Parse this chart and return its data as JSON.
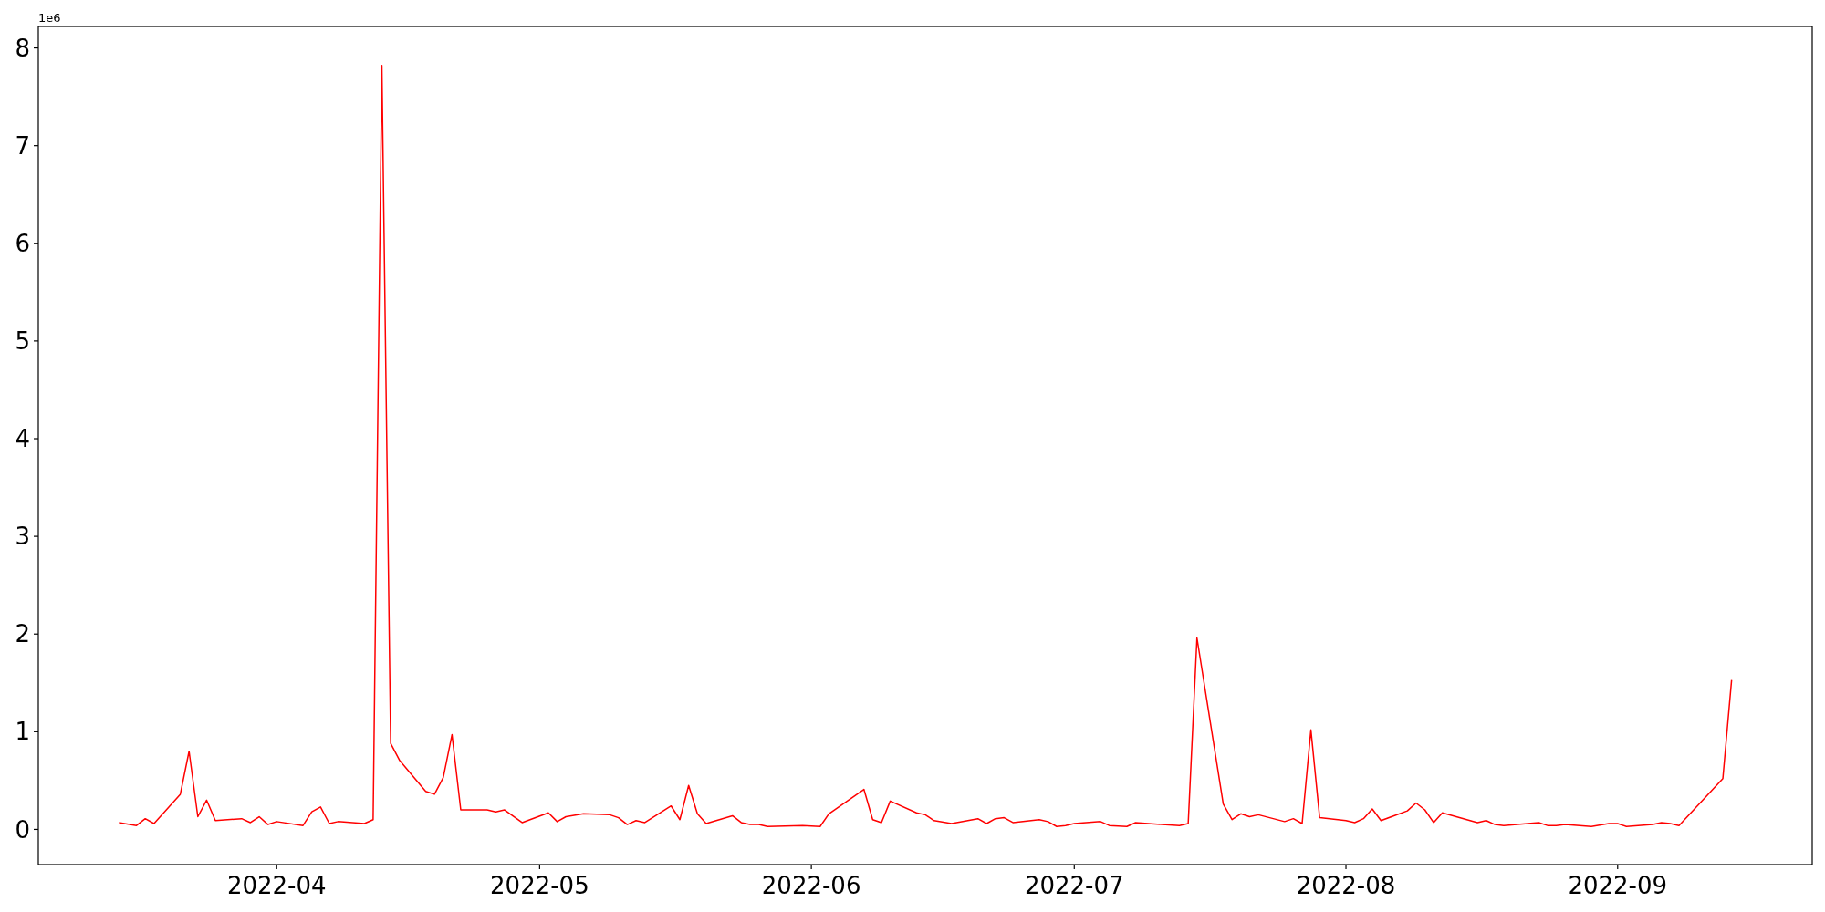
{
  "chart_data": {
    "type": "line",
    "x": [
      "2022-03-14",
      "2022-03-16",
      "2022-03-17",
      "2022-03-18",
      "2022-03-21",
      "2022-03-22",
      "2022-03-23",
      "2022-03-24",
      "2022-03-25",
      "2022-03-28",
      "2022-03-29",
      "2022-03-30",
      "2022-03-31",
      "2022-04-01",
      "2022-04-04",
      "2022-04-05",
      "2022-04-06",
      "2022-04-07",
      "2022-04-08",
      "2022-04-11",
      "2022-04-12",
      "2022-04-13",
      "2022-04-14",
      "2022-04-15",
      "2022-04-18",
      "2022-04-19",
      "2022-04-20",
      "2022-04-21",
      "2022-04-22",
      "2022-04-25",
      "2022-04-26",
      "2022-04-27",
      "2022-04-29",
      "2022-05-02",
      "2022-05-03",
      "2022-05-04",
      "2022-05-06",
      "2022-05-09",
      "2022-05-10",
      "2022-05-11",
      "2022-05-12",
      "2022-05-13",
      "2022-05-16",
      "2022-05-17",
      "2022-05-18",
      "2022-05-19",
      "2022-05-20",
      "2022-05-23",
      "2022-05-24",
      "2022-05-25",
      "2022-05-26",
      "2022-05-27",
      "2022-05-31",
      "2022-06-02",
      "2022-06-03",
      "2022-06-07",
      "2022-06-08",
      "2022-06-09",
      "2022-06-10",
      "2022-06-13",
      "2022-06-14",
      "2022-06-15",
      "2022-06-17",
      "2022-06-20",
      "2022-06-21",
      "2022-06-22",
      "2022-06-23",
      "2022-06-24",
      "2022-06-27",
      "2022-06-28",
      "2022-06-29",
      "2022-06-30",
      "2022-07-01",
      "2022-07-04",
      "2022-07-05",
      "2022-07-07",
      "2022-07-08",
      "2022-07-11",
      "2022-07-13",
      "2022-07-14",
      "2022-07-15",
      "2022-07-18",
      "2022-07-19",
      "2022-07-20",
      "2022-07-21",
      "2022-07-22",
      "2022-07-25",
      "2022-07-26",
      "2022-07-27",
      "2022-07-28",
      "2022-07-29",
      "2022-08-01",
      "2022-08-02",
      "2022-08-03",
      "2022-08-04",
      "2022-08-05",
      "2022-08-08",
      "2022-08-09",
      "2022-08-10",
      "2022-08-11",
      "2022-08-12",
      "2022-08-16",
      "2022-08-17",
      "2022-08-18",
      "2022-08-19",
      "2022-08-23",
      "2022-08-24",
      "2022-08-25",
      "2022-08-26",
      "2022-08-29",
      "2022-08-31",
      "2022-09-01",
      "2022-09-02",
      "2022-09-05",
      "2022-09-06",
      "2022-09-07",
      "2022-09-08",
      "2022-09-13",
      "2022-09-14"
    ],
    "series": [
      {
        "color": "#ff0000",
        "values": [
          0.07,
          0.04,
          0.11,
          0.06,
          0.36,
          0.8,
          0.13,
          0.3,
          0.09,
          0.11,
          0.07,
          0.13,
          0.05,
          0.08,
          0.04,
          0.18,
          0.23,
          0.06,
          0.08,
          0.06,
          0.1,
          7.82,
          0.88,
          0.71,
          0.39,
          0.36,
          0.53,
          0.97,
          0.2,
          0.2,
          0.18,
          0.2,
          0.07,
          0.17,
          0.08,
          0.13,
          0.16,
          0.15,
          0.12,
          0.05,
          0.09,
          0.07,
          0.24,
          0.1,
          0.45,
          0.16,
          0.06,
          0.14,
          0.07,
          0.05,
          0.05,
          0.03,
          0.04,
          0.03,
          0.16,
          0.41,
          0.1,
          0.07,
          0.29,
          0.17,
          0.15,
          0.09,
          0.06,
          0.11,
          0.06,
          0.11,
          0.12,
          0.07,
          0.1,
          0.08,
          0.03,
          0.04,
          0.06,
          0.08,
          0.04,
          0.03,
          0.07,
          0.05,
          0.04,
          0.06,
          1.96,
          0.26,
          0.1,
          0.16,
          0.13,
          0.15,
          0.08,
          0.11,
          0.06,
          1.02,
          0.12,
          0.09,
          0.07,
          0.11,
          0.21,
          0.09,
          0.19,
          0.27,
          0.2,
          0.07,
          0.17,
          0.07,
          0.09,
          0.05,
          0.04,
          0.07,
          0.04,
          0.04,
          0.05,
          0.03,
          0.06,
          0.06,
          0.03,
          0.05,
          0.07,
          0.06,
          0.04,
          0.52,
          1.53
        ]
      }
    ],
    "xlim": [
      "2022-03-04T19:12",
      "2022-09-23T04:48"
    ],
    "xticks": [
      {
        "value": "2022-04-01",
        "label": "2022-04"
      },
      {
        "value": "2022-05-01",
        "label": "2022-05"
      },
      {
        "value": "2022-06-01",
        "label": "2022-06"
      },
      {
        "value": "2022-07-01",
        "label": "2022-07"
      },
      {
        "value": "2022-08-01",
        "label": "2022-08"
      },
      {
        "value": "2022-09-01",
        "label": "2022-09"
      }
    ],
    "ylim": [
      -0.36,
      8.22
    ],
    "yticks": [
      0,
      1,
      2,
      3,
      4,
      5,
      6,
      7,
      8
    ],
    "annotations": [
      "1e6"
    ]
  }
}
